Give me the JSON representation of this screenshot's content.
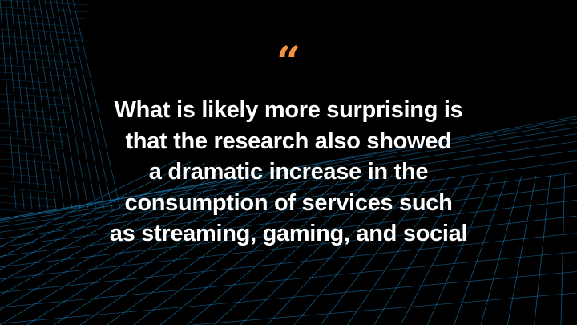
{
  "quote": {
    "mark": "“",
    "lines": [
      "What is likely more surprising is",
      "that the research also showed",
      "a dramatic increase in the",
      "consumption of services such",
      "as streaming, gaming, and social"
    ]
  },
  "colors": {
    "accent": "#f7923a",
    "grid": "#1e8fd6",
    "background": "#000000"
  }
}
